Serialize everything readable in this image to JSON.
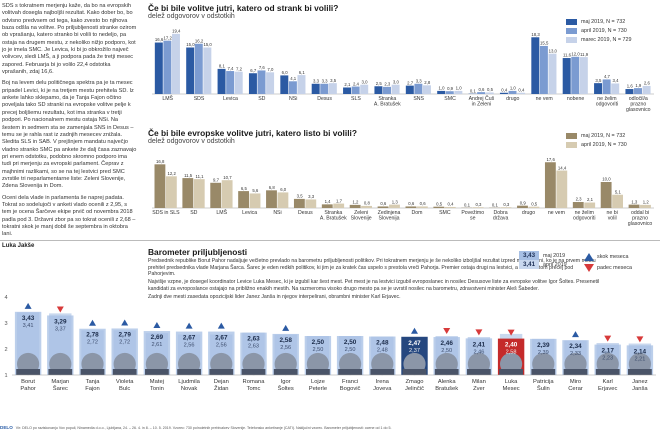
{
  "article": {
    "paragraphs": [
      "SDS s tokratnem merjenju kaže, da bo na evropskih volitvah dosegla najboljši rezultat. Kako dober bo, bo odvisno predvsem od tega, kako zvesto bo njihova baza odšla na volitve. Po priljubljenosti stranke ozirom ob vprašanju, katero stranko bi volili to nedeljo, pa ostaja na drugem mestu, z nekoliko nižjo podporo, kot jo je imela SMC. Je Levica, ki bi jo obkrožilo največ volivcev, sledi LMŠ, a ji podpora pada že tretji mesec zapored. Februarja bi jo volilo 22,4 odstotka vprašanih, zdaj 16,6.",
      "Boj na levem delu političnega spektra pa je ta mesec pripadel Levici, ki je na tretjem mestu prehitela SD. Iz ankete lahko sklepamo, da je Tanja Fajon očitno poveljala tako SD stranki na evropske volitve pelje k precej boljšemu rezultatu, kot ima stranka v tretji podpori. Po nacionalnem mestu ostaja NSi. Na šestem in sedmem sta se zamenjala SNS in Desus – temu se je rahla rast iz zadnjih mesecev znižala. Sledita SLS in SAB. V prejšnjem mandatu največjo vladno stranko SMC pa ankete že dalj časa zaznavajo pri enem odstotku, podobno skromno podporo ima tudi pri merjenju za evropski parlament. Čeprav z majhnimi razlikami, so se na tej lestvici pred SMC zvrstile tri neparlamentarne liste: Zeleni Slovenije, Zdena Slovenija in Dom.",
      "Oceni dela vlade in parlamenta še naprej padata. Tokrat so sodelujoči v anketi vlado ocenili z 2,95, s tem je ocena Šarčeve ekipe prvič od novembra 2018 padla pod 3. Državni zbor pa so tokrat ocenili z 2,68 – tokratni skok je manj dobil še septembra in oktobra lani."
    ],
    "author": "Luka Jakše"
  },
  "chart1": {
    "title": "Če bi bile volitve jutri, katero od strank bi volili?",
    "subtitle": "delež odgovorov v odstotkih",
    "legend": [
      "maj 2019, N = 732",
      "april 2019, N = 730",
      "marec 2019, N = 729"
    ],
    "colors": [
      "#2b5aa3",
      "#7b9bd1",
      "#c6d2e9"
    ]
  },
  "chart2": {
    "title": "Če bi bile evropske volitve jutri, katero listo bi volili?",
    "subtitle": "delež odgovorov v odstotkih",
    "legend": [
      "maj 2019, N = 732",
      "april 2019, N = 730"
    ],
    "colors": [
      "#998968",
      "#d6cbb1"
    ]
  },
  "chart_data": [
    {
      "type": "bar",
      "title": "Če bi bile volitve jutri, katero od strank bi volili?",
      "subtitle": "delež odgovorov v odstotkih",
      "categories": [
        "LMŠ",
        "SDS",
        "Levica",
        "SD",
        "NSi",
        "Desus",
        "SLS",
        "Stranka A. Bratušek",
        "SNS",
        "SMC",
        "Andrej Čuš in Zeleni",
        "drugo",
        "ne vem",
        "nobene",
        "ne želim odgovoriti",
        "odločil/a prazno glasovnico"
      ],
      "series": [
        {
          "name": "maj 2019, N = 732",
          "values": [
            16.6,
            15.0,
            8.1,
            6.7,
            6.0,
            3.3,
            2.1,
            2.5,
            2.7,
            1.0,
            0.1,
            0.4,
            18.3,
            11.6,
            3.5,
            1.6
          ]
        },
        {
          "name": "april 2019, N = 730",
          "values": [
            17.2,
            16.2,
            7.4,
            7.6,
            4.1,
            3.3,
            2.4,
            2.3,
            3.3,
            0.9,
            0.6,
            1.0,
            15.5,
            12.0,
            4.7,
            1.9
          ]
        },
        {
          "name": "marec 2019, N = 729",
          "values": [
            19.4,
            15.0,
            7.2,
            7.0,
            6.1,
            3.5,
            3.0,
            3.0,
            2.8,
            1.0,
            0.5,
            0.4,
            13.0,
            11.9,
            3.4,
            2.6
          ]
        }
      ]
    },
    {
      "type": "bar",
      "title": "Če bi bile evropske volitve jutri, katero listo bi volili?",
      "subtitle": "delež odgovorov v odstotkih",
      "categories": [
        "SDS in SLS",
        "SD",
        "LMŠ",
        "Levica",
        "NSi",
        "Desus",
        "Stranka A. Bratušek",
        "Zeleni Slovenije",
        "Zedinjena Slovenija",
        "Dom",
        "SMC",
        "Povežimo se",
        "Dobra država",
        "drugo",
        "ne vem",
        "ne želim odgovoriti",
        "ne bi volil",
        "oddal bi prazno glasovnico"
      ],
      "series": [
        {
          "name": "maj 2019, N = 732",
          "values": [
            16.8,
            11.5,
            9.7,
            6.5,
            6.8,
            3.5,
            1.4,
            1.2,
            0.6,
            0.6,
            0.5,
            0.1,
            0.1,
            0.9,
            17.6,
            2.3,
            10.0,
            1.3
          ]
        },
        {
          "name": "april 2019, N = 730",
          "values": [
            12.2,
            11.1,
            10.7,
            5.6,
            6.0,
            3.3,
            1.7,
            0.8,
            1.3,
            0.6,
            0.4,
            0.3,
            0.3,
            0.5,
            14.4,
            2.1,
            5.1,
            1.2
          ]
        }
      ]
    },
    {
      "type": "bar",
      "title": "Barometer priljubljenosti",
      "categories": [
        "Borut Pahor",
        "Marjan Šarec",
        "Tanja Fajon",
        "Violeta Bulc",
        "Matej Tonin",
        "Ljudmila Novak",
        "Dejan Židan",
        "Romana Tomc",
        "Igor Šoltes",
        "Lojze Peterle",
        "Franci Bogovič",
        "Irena Joveva",
        "Zmago Jelinčič",
        "Alenka Bratušek",
        "Milan Zver",
        "Luka Mesec",
        "Patricija Šulin",
        "Miro Cerar",
        "Karl Erjavec",
        "Janez Janša"
      ],
      "series": [
        {
          "name": "maj 2019",
          "values": [
            3.43,
            3.29,
            2.78,
            2.79,
            2.69,
            2.67,
            2.67,
            2.63,
            2.58,
            2.5,
            2.5,
            2.48,
            2.47,
            2.46,
            2.41,
            2.4,
            2.39,
            2.34,
            2.17,
            2.14
          ]
        },
        {
          "name": "april 2019",
          "values": [
            3.41,
            3.37,
            2.72,
            2.72,
            2.61,
            2.56,
            2.56,
            2.63,
            2.56,
            2.5,
            2.5,
            2.48,
            2.37,
            2.5,
            2.46,
            2.58,
            2.39,
            2.33,
            2.23,
            2.21
          ]
        }
      ],
      "trend": [
        "up",
        "down",
        "up",
        "up",
        "up",
        "up",
        "up",
        "none",
        "up",
        "none",
        "none",
        "none",
        "up",
        "down",
        "down",
        "down",
        "none",
        "up",
        "down",
        "down"
      ],
      "ylim": [
        1,
        5
      ],
      "yticks": [
        "1",
        "2",
        "3",
        "4"
      ]
    }
  ],
  "barometer": {
    "title": "Barometer priljubljenosti",
    "text": [
      "Predsednik republike Borut Pahor nadaljuje večletno prevlado na barometru priljubljenosti politikov. Pri tokratnem merjenju je še nekoliko izboljšal rezultat izpred meseca dni, ko je na prvem mestu prehitel predsednika vlade Marjana Šarca. Šarec je eden redkih politikov, ki jim je za kratek čas uspelo s prestola vreči Pahorja. Premier ostaja drugi na lestvici, a z rezultatom precej pod Pahorjevim.",
      "Najvišje vzpne, je dosegel koordinator Levice Luka Mesec, ki je izgubil kar šest mest. Pet mest je na lestvici izgubil evroposlanec in nosilec Desusove liste za evropske volitve Igor Šoltes. Presenetil kandidati za evroposlance ostajajo na približno enakih mestih. Na razmeroma visoko drugo mesto pa se je uvrstil nosilec na barometru, zdravstveni minister Aleš Šabeder.",
      "Zadnji dve mesti zasedata opozicijski lider Janez Janša in njegov interpelirani, obrambni minister Karl Erjavec."
    ],
    "legend": {
      "may_value": "3,43",
      "may_label": "maj 2019",
      "apr_value": "3,41",
      "apr_label": "april 2019",
      "up_label": "skok meseca",
      "down_label": "padec meseca"
    },
    "colors": {
      "may": "#a6bfe4",
      "april": "#c9d8ee",
      "highlight_may": "#c42a2a",
      "highlight_may_alt": "#25477f",
      "up": "#2b5aa3",
      "down": "#d73a3a"
    }
  },
  "footer": {
    "logo": "DELO",
    "text": "Vir: DELO po raziskovanju Vox populi, Ninamedia d.o.o., Ljubljana, 24. – 26. 4. in 8. – 10. 5. 2019. Vzorec: 730 polnoletnih prebivalcev Slovenije. Telefonsko anketiranje (CATI). Naključni vzorec. Barometer priljubljenosti: ocene od 1 do 5."
  }
}
